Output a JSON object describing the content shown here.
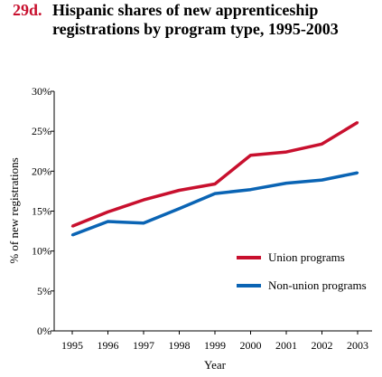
{
  "figure": {
    "number": "29d.",
    "title_line1": "Hispanic shares of new apprenticeship",
    "title_line2": "registrations by program type, 1995-2003"
  },
  "chart_data": {
    "type": "line",
    "title": "Hispanic shares of new apprenticeship registrations by program type, 1995-2003",
    "xlabel": "Year",
    "ylabel": "% of new registrations",
    "x": [
      "1995",
      "1996",
      "1997",
      "1998",
      "1999",
      "2000",
      "2001",
      "2002",
      "2003"
    ],
    "ylim": [
      0,
      30
    ],
    "yticks": [
      0,
      5,
      10,
      15,
      20,
      25,
      30
    ],
    "ytick_labels": [
      "0%",
      "5%",
      "10%",
      "15%",
      "20%",
      "25%",
      "30%"
    ],
    "grid": false,
    "legend_position": "bottom-right",
    "series": [
      {
        "name": "Union programs",
        "color": "#c8102e",
        "values": [
          13.1,
          14.9,
          16.4,
          17.6,
          18.4,
          22.0,
          22.4,
          23.4,
          26.1
        ]
      },
      {
        "name": "Non-union programs",
        "color": "#0a64b4",
        "values": [
          12.0,
          13.7,
          13.5,
          15.3,
          17.2,
          17.7,
          18.5,
          18.9,
          19.8
        ]
      }
    ]
  }
}
